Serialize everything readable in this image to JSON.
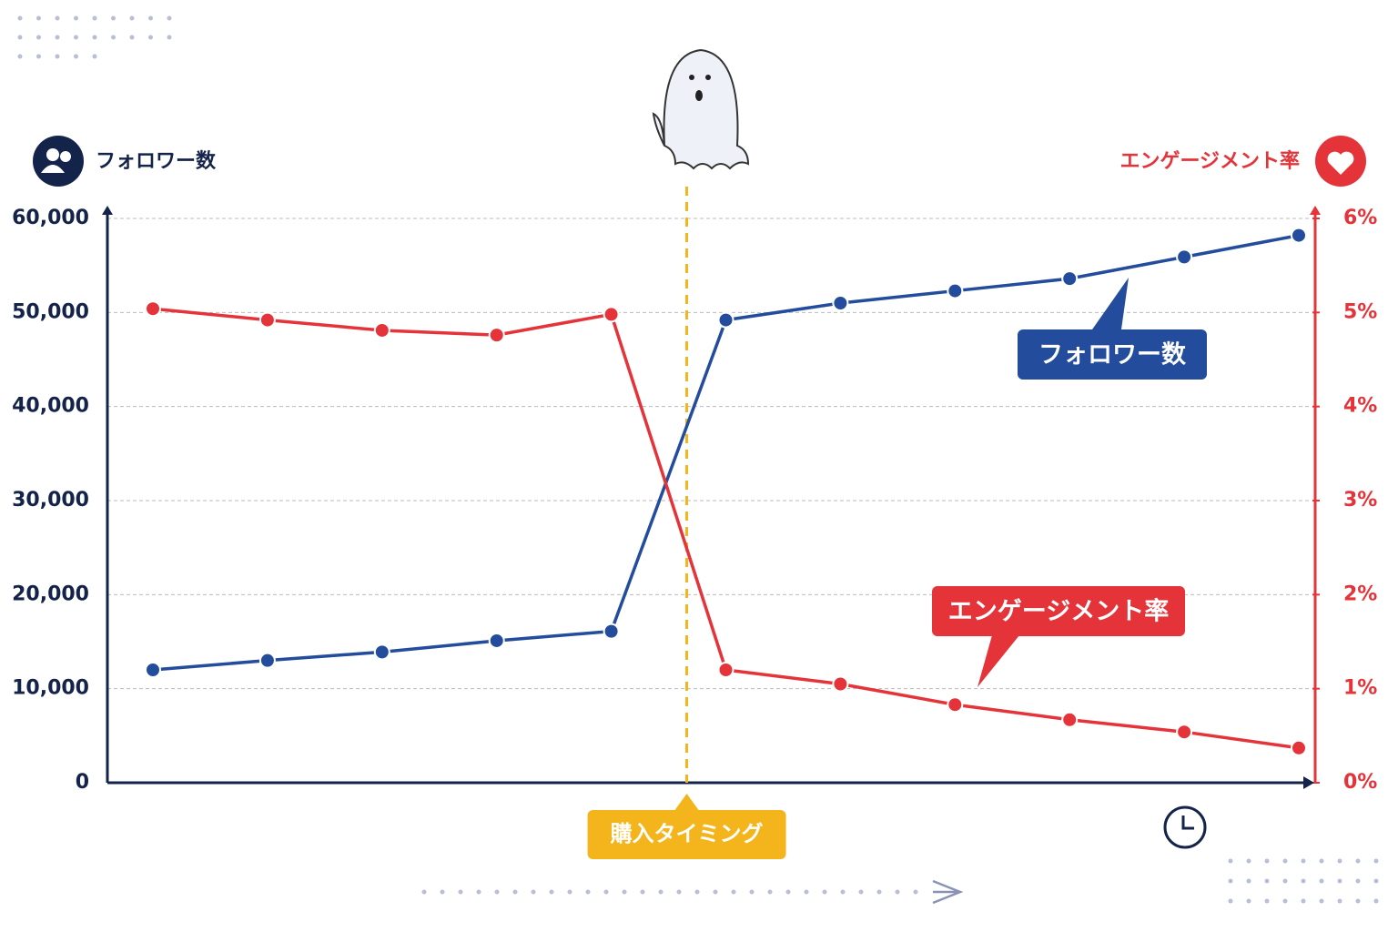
{
  "chart_data": {
    "type": "line",
    "y_axis_label": "フォロワー数",
    "y2_axis_label": "エンゲージメント率",
    "annotation": "購入タイミング",
    "categories": [
      null,
      null,
      null,
      null,
      null,
      null,
      null,
      null,
      null,
      null,
      null
    ],
    "series": [
      {
        "name": "フォロワー数",
        "color": "#234d9c",
        "values": [
          12000,
          13000,
          13900,
          15100,
          16100,
          49200,
          51000,
          52300,
          53600,
          55900,
          58200
        ]
      },
      {
        "name": "エンゲージメント率",
        "color": "#e5333a",
        "axis": "y2",
        "values": [
          5.04,
          4.92,
          4.81,
          4.76,
          4.98,
          1.2,
          1.05,
          0.83,
          0.67,
          0.54,
          0.37
        ]
      }
    ],
    "ylim": [
      0,
      60000
    ],
    "yticks": [
      0,
      {
        "value": 10000,
        "label": "10,000"
      },
      {
        "value": 20000,
        "label": "20,000"
      },
      {
        "value": 30000,
        "label": "30,000"
      },
      {
        "value": 40000,
        "label": "40,000"
      },
      {
        "value": 50000,
        "label": "50,000"
      },
      {
        "value": 60000,
        "label": "60,000"
      }
    ],
    "y2lim": [
      0,
      6
    ],
    "y2ticks": [
      {
        "value": 0,
        "label": "0%"
      },
      {
        "value": 1,
        "label": "1%"
      },
      {
        "value": 2,
        "label": "2%"
      },
      {
        "value": 3,
        "label": "3%"
      },
      {
        "value": 4,
        "label": "4%"
      },
      {
        "value": 5,
        "label": "5%"
      },
      {
        "value": 6,
        "label": "6%"
      }
    ],
    "grid": true
  }
}
